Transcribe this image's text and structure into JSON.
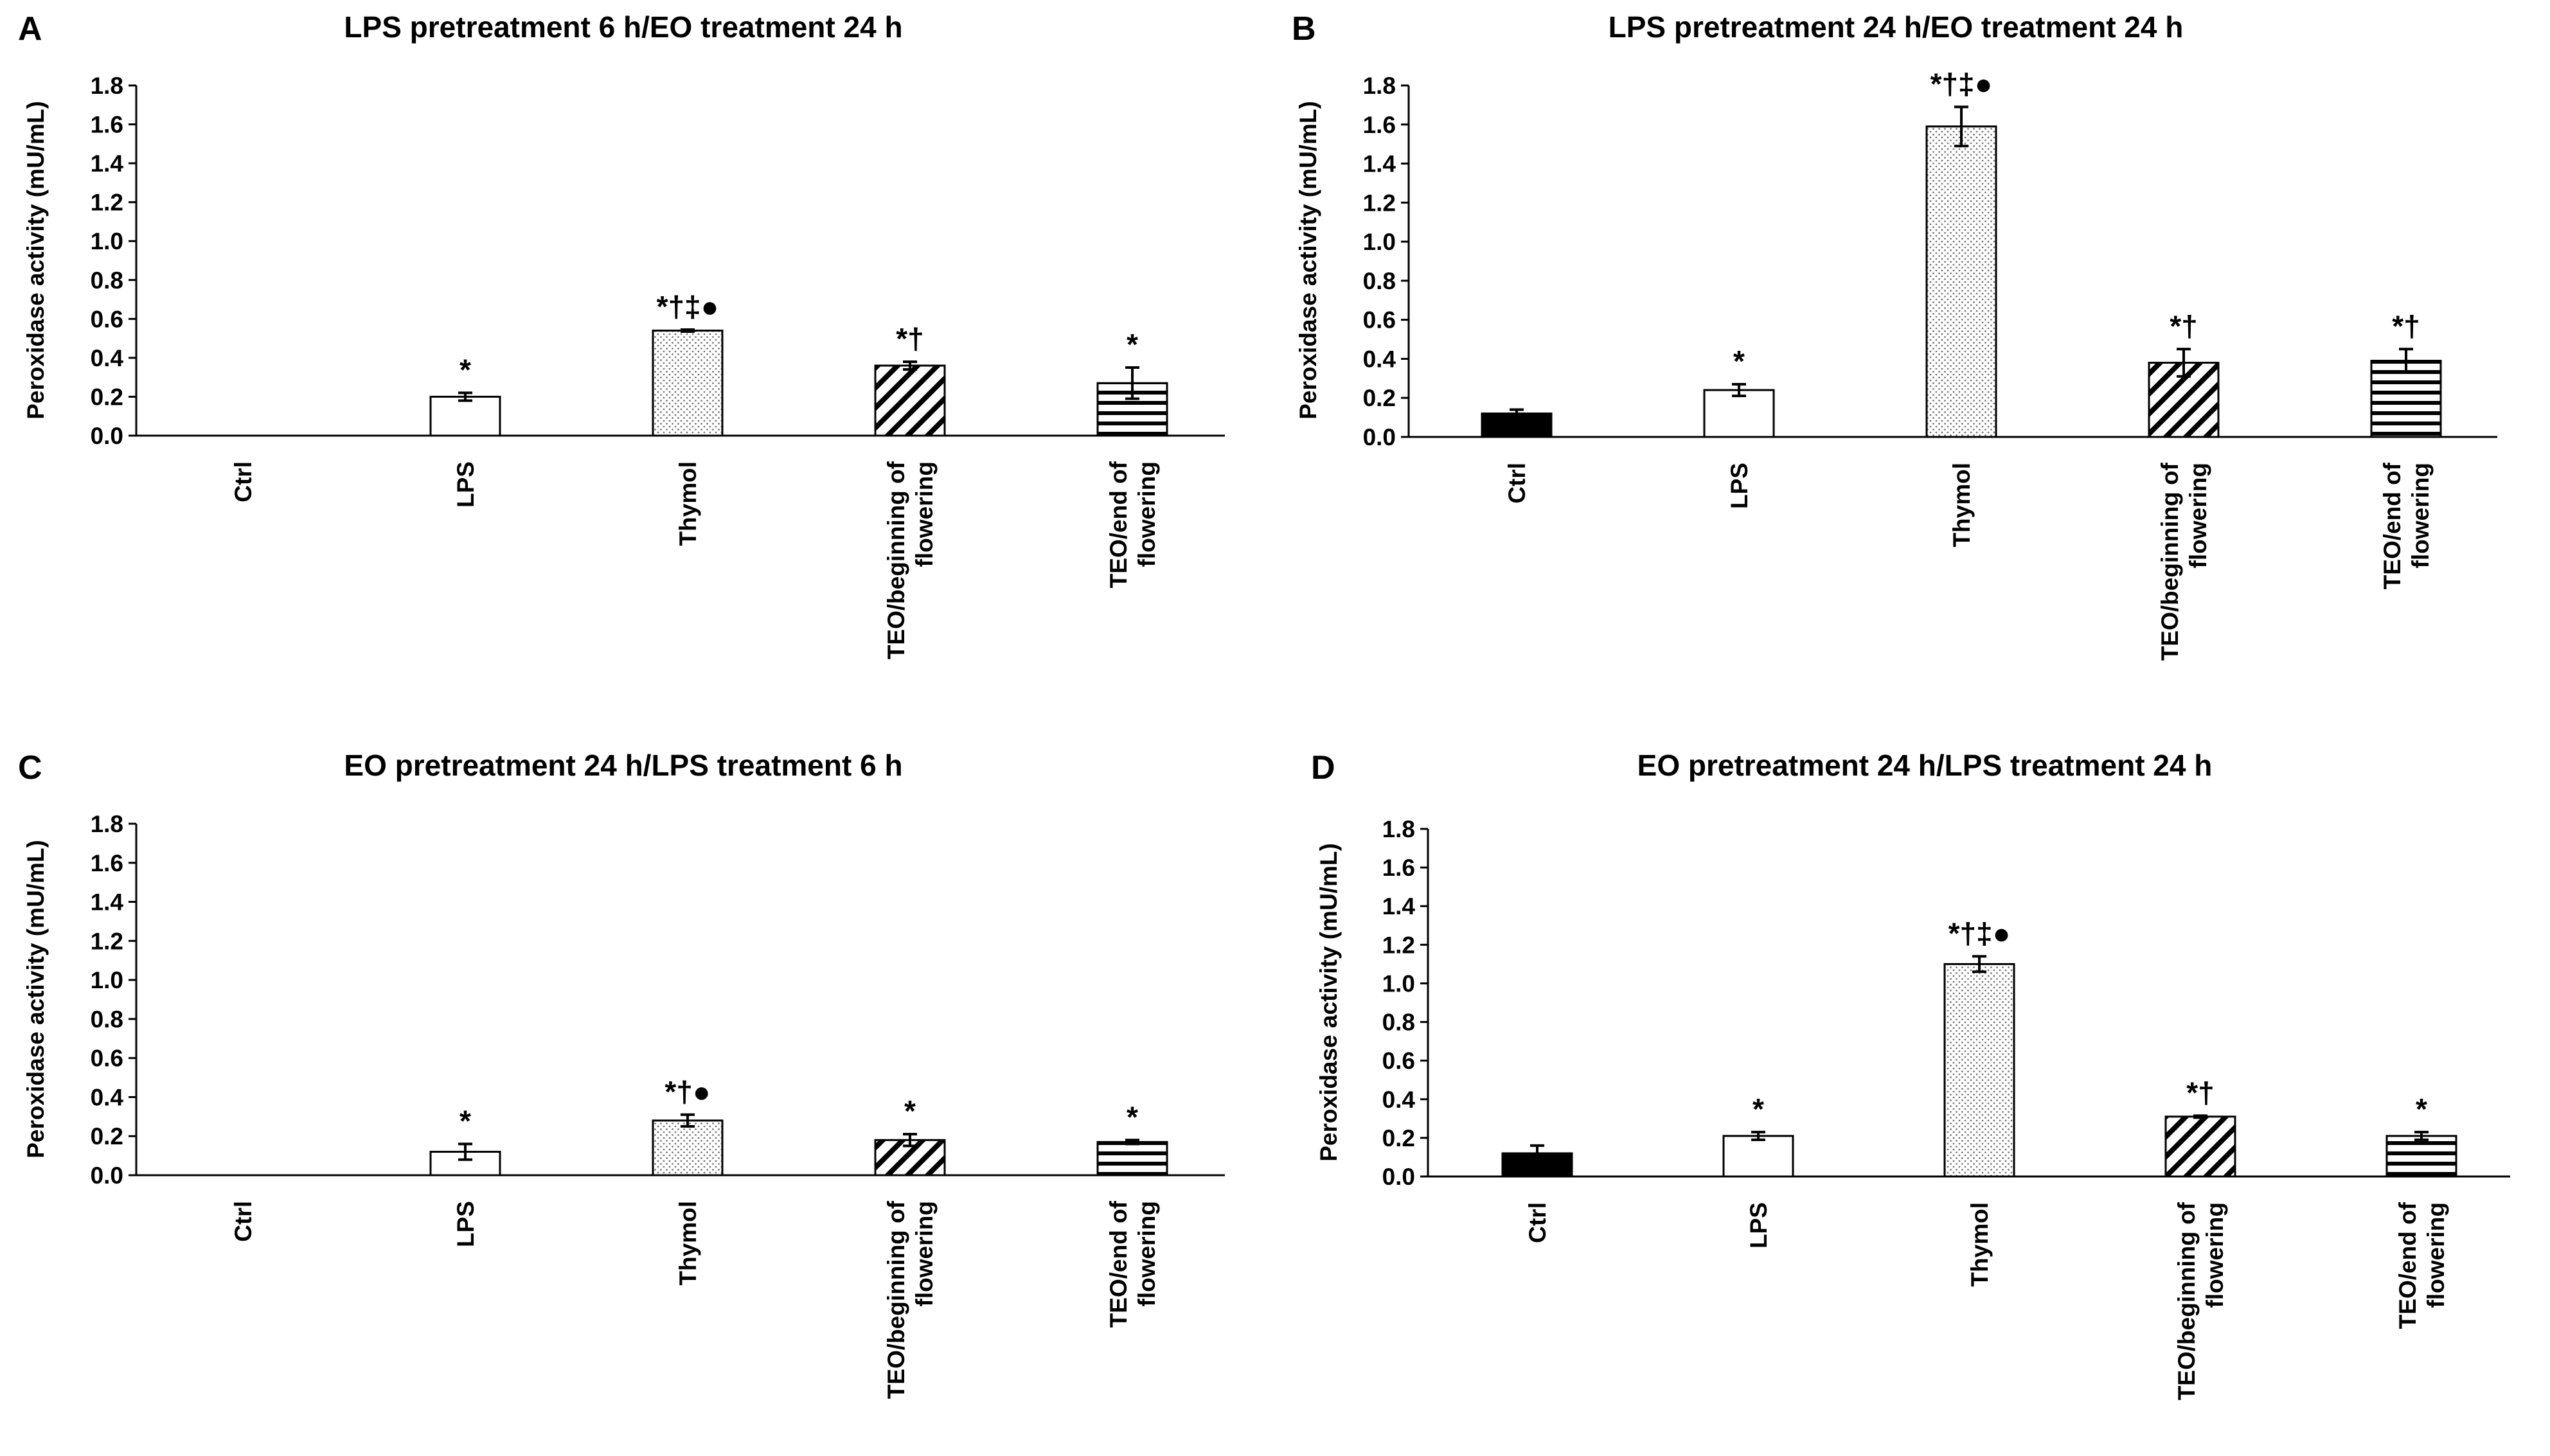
{
  "figure": {
    "y_axis_label": "Peroxidase activity (mU/mL)"
  },
  "chart_data": [
    {
      "panel_letter": "A",
      "type": "bar",
      "title": "LPS pretreatment 6 h/EO treatment 24 h",
      "ylabel": "Peroxidase activity (mU/mL)",
      "ylim": [
        0,
        1.8
      ],
      "yticks": [
        "0.0",
        "0.2",
        "0.4",
        "0.6",
        "0.8",
        "1.0",
        "1.2",
        "1.4",
        "1.6",
        "1.8"
      ],
      "categories": [
        "Ctrl",
        "LPS",
        "Thymol",
        "TEO/beginning of flowering",
        "TEO/end of flowering"
      ],
      "values": [
        0.0,
        0.2,
        0.54,
        0.36,
        0.27
      ],
      "errors": [
        0.0,
        0.02,
        0.005,
        0.02,
        0.08
      ],
      "annotations": [
        "",
        "*",
        "*†‡●",
        "*†",
        "*"
      ],
      "fill_styles": [
        "solid-black",
        "white",
        "dots",
        "diagonal",
        "horizontal"
      ]
    },
    {
      "panel_letter": "B",
      "type": "bar",
      "title": "LPS pretreatment 24 h/EO treatment 24 h",
      "ylabel": "Peroxidase activity (mU/mL)",
      "ylim": [
        0,
        1.8
      ],
      "yticks": [
        "0.0",
        "0.2",
        "0.4",
        "0.6",
        "0.8",
        "1.0",
        "1.2",
        "1.4",
        "1.6",
        "1.8"
      ],
      "categories": [
        "Ctrl",
        "LPS",
        "Thymol",
        "TEO/beginning of flowering",
        "TEO/end of flowering"
      ],
      "values": [
        0.12,
        0.24,
        1.59,
        0.38,
        0.39
      ],
      "errors": [
        0.02,
        0.03,
        0.1,
        0.07,
        0.06
      ],
      "annotations": [
        "",
        "*",
        "*†‡●",
        "*†",
        "*†"
      ],
      "fill_styles": [
        "solid-black",
        "white",
        "dots",
        "diagonal",
        "horizontal"
      ]
    },
    {
      "panel_letter": "C",
      "type": "bar",
      "title": "EO pretreatment 24 h/LPS treatment 6 h",
      "ylabel": "Peroxidase activity (mU/mL)",
      "ylim": [
        0,
        1.8
      ],
      "yticks": [
        "0.0",
        "0.2",
        "0.4",
        "0.6",
        "0.8",
        "1.0",
        "1.2",
        "1.4",
        "1.6",
        "1.8"
      ],
      "categories": [
        "Ctrl",
        "LPS",
        "Thymol",
        "TEO/beginning of flowering",
        "TEO/end of flowering"
      ],
      "values": [
        0.0,
        0.12,
        0.28,
        0.18,
        0.17
      ],
      "errors": [
        0.0,
        0.04,
        0.03,
        0.03,
        0.01
      ],
      "annotations": [
        "",
        "*",
        "*†●",
        "*",
        "*"
      ],
      "fill_styles": [
        "solid-black",
        "white",
        "dots",
        "diagonal",
        "horizontal"
      ]
    },
    {
      "panel_letter": "D",
      "type": "bar",
      "title": "EO pretreatment 24 h/LPS treatment 24 h",
      "ylabel": "Peroxidase activity (mU/mL)",
      "ylim": [
        0,
        1.8
      ],
      "yticks": [
        "0.0",
        "0.2",
        "0.4",
        "0.6",
        "0.8",
        "1.0",
        "1.2",
        "1.4",
        "1.6",
        "1.8"
      ],
      "categories": [
        "Ctrl",
        "LPS",
        "Thymol",
        "TEO/beginning of flowering",
        "TEO/end of flowering"
      ],
      "values": [
        0.12,
        0.21,
        1.1,
        0.31,
        0.21
      ],
      "errors": [
        0.04,
        0.02,
        0.04,
        0.005,
        0.02
      ],
      "annotations": [
        "",
        "*",
        "*†‡●",
        "*†",
        "*"
      ],
      "fill_styles": [
        "solid-black",
        "white",
        "dots",
        "diagonal",
        "horizontal"
      ]
    }
  ]
}
